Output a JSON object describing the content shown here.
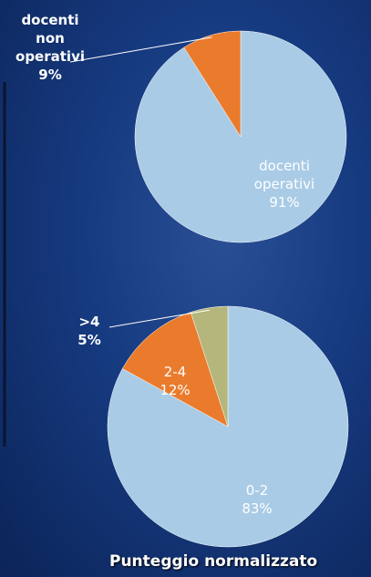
{
  "chart_data": [
    {
      "type": "pie",
      "categories": [
        "docenti operativi",
        "docenti non operativi"
      ],
      "values": [
        91,
        9
      ],
      "value_labels": [
        "91%",
        "9%"
      ],
      "colors": [
        "#a9cbe6",
        "#ea7b2c"
      ]
    },
    {
      "type": "pie",
      "title": "Punteggio normalizzato",
      "categories": [
        "0-2",
        "2-4",
        ">4"
      ],
      "values": [
        83,
        12,
        5
      ],
      "value_labels": [
        "83%",
        "12%",
        "5%"
      ],
      "colors": [
        "#a9cbe6",
        "#ea7b2c",
        "#b4b67c"
      ]
    }
  ]
}
